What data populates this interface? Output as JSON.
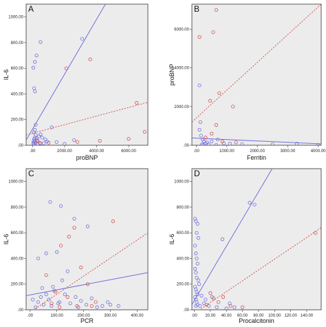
{
  "chart_data": [
    {
      "panel_label": "A",
      "type": "scatter",
      "xlabel": "proBNP",
      "ylabel": "IL-6",
      "xlim": [
        -400,
        7200
      ],
      "ylim": [
        0,
        1100
      ],
      "xticks": [
        0,
        2000,
        4000,
        6000
      ],
      "xtick_labels": [
        ".00",
        "2000.00",
        "4000.00",
        "6000.00"
      ],
      "yticks": [
        0,
        200,
        400,
        600,
        800,
        1000
      ],
      "ytick_labels": [
        ".00",
        "200.00",
        "400.00",
        "600.00",
        "800.00",
        "1000.00"
      ],
      "series": [
        {
          "marker": "circle-open",
          "color": "#6f6fdc",
          "points": [
            [
              50,
              20
            ],
            [
              80,
              35
            ],
            [
              100,
              50
            ],
            [
              150,
              60
            ],
            [
              200,
              80
            ],
            [
              260,
              55
            ],
            [
              300,
              40
            ],
            [
              400,
              70
            ],
            [
              500,
              85
            ],
            [
              600,
              60
            ],
            [
              800,
              45
            ],
            [
              1200,
              140
            ],
            [
              150,
              120
            ],
            [
              100,
              100
            ],
            [
              200,
              160
            ],
            [
              150,
              420
            ],
            [
              100,
              445
            ],
            [
              50,
              605
            ],
            [
              150,
              650
            ],
            [
              250,
              700
            ],
            [
              500,
              805
            ],
            [
              3100,
              830
            ],
            [
              60,
              10
            ],
            [
              120,
              25
            ],
            [
              180,
              15
            ],
            [
              300,
              10
            ],
            [
              450,
              20
            ],
            [
              700,
              15
            ],
            [
              900,
              30
            ],
            [
              1500,
              25
            ],
            [
              2000,
              10
            ],
            [
              2600,
              40
            ]
          ],
          "fit_line": [
            [
              -400,
              40
            ],
            [
              4550,
              1100
            ]
          ]
        },
        {
          "marker": "circle-open",
          "color": "#d45050",
          "points": [
            [
              2100,
              600
            ],
            [
              3600,
              670
            ],
            [
              6500,
              330
            ],
            [
              7000,
              105
            ],
            [
              6000,
              50
            ],
            [
              2800,
              25
            ],
            [
              4200,
              35
            ],
            [
              1000,
              20
            ],
            [
              500,
              15
            ],
            [
              300,
              30
            ]
          ],
          "fit_line": [
            [
              -400,
              80
            ],
            [
              7200,
              335
            ]
          ]
        }
      ]
    },
    {
      "panel_label": "B",
      "type": "scatter",
      "xlabel": "Ferritin",
      "ylabel": "proBNP",
      "xlim": [
        -150,
        4100
      ],
      "ylim": [
        0,
        7300
      ],
      "xticks": [
        0,
        1000,
        2000,
        3000,
        4000
      ],
      "xtick_labels": [
        ".00",
        "1000.00",
        "2000.00",
        "3000.00",
        "4000.00"
      ],
      "yticks": [
        0,
        2000,
        4000,
        6000
      ],
      "ytick_labels": [
        ".00",
        "2000.00",
        "4000.00",
        "6000.00"
      ],
      "series": [
        {
          "marker": "circle-open",
          "color": "#6f6fdc",
          "points": [
            [
              100,
              3100
            ],
            [
              130,
              1200
            ],
            [
              100,
              800
            ],
            [
              150,
              500
            ],
            [
              200,
              300
            ],
            [
              250,
              200
            ],
            [
              300,
              100
            ],
            [
              350,
              150
            ],
            [
              500,
              200
            ],
            [
              700,
              300
            ],
            [
              900,
              100
            ],
            [
              1100,
              80
            ],
            [
              1500,
              60
            ],
            [
              2500,
              50
            ],
            [
              3300,
              80
            ],
            [
              4000,
              20
            ],
            [
              180,
              50
            ],
            [
              220,
              30
            ],
            [
              400,
              40
            ],
            [
              650,
              20
            ]
          ],
          "fit_line": [
            [
              -150,
              380
            ],
            [
              4100,
              70
            ]
          ]
        },
        {
          "marker": "circle-open",
          "color": "#d45050",
          "points": [
            [
              100,
              5600
            ],
            [
              650,
              7000
            ],
            [
              550,
              5850
            ],
            [
              750,
              2700
            ],
            [
              1200,
              2000
            ],
            [
              450,
              2300
            ],
            [
              650,
              1050
            ],
            [
              500,
              600
            ],
            [
              850,
              200
            ],
            [
              1300,
              150
            ],
            [
              300,
              400
            ]
          ],
          "fit_line": [
            [
              -150,
              1200
            ],
            [
              4100,
              7300
            ]
          ]
        }
      ]
    },
    {
      "panel_label": "C",
      "type": "scatter",
      "xlabel": "PCR",
      "ylabel": "IL-6",
      "xlim": [
        -15,
        440
      ],
      "ylim": [
        0,
        1100
      ],
      "xticks": [
        0,
        100,
        200,
        300,
        400
      ],
      "xtick_labels": [
        ".00",
        "100.00",
        "200.00",
        "300.00",
        "400.00"
      ],
      "yticks": [
        0,
        200,
        400,
        600,
        800,
        1000
      ],
      "ytick_labels": [
        ".00",
        "200.00",
        "400.00",
        "600.00",
        "800.00",
        "1000.00"
      ],
      "series": [
        {
          "marker": "circle-open",
          "color": "#6f6fdc",
          "points": [
            [
              75,
              840
            ],
            [
              115,
              810
            ],
            [
              165,
              710
            ],
            [
              215,
              650
            ],
            [
              30,
              400
            ],
            [
              60,
              440
            ],
            [
              100,
              450
            ],
            [
              140,
              300
            ],
            [
              120,
              230
            ],
            [
              90,
              150
            ],
            [
              60,
              120
            ],
            [
              40,
              100
            ],
            [
              30,
              60
            ],
            [
              50,
              40
            ],
            [
              70,
              80
            ],
            [
              80,
              30
            ],
            [
              110,
              60
            ],
            [
              130,
              120
            ],
            [
              150,
              50
            ],
            [
              170,
              100
            ],
            [
              190,
              70
            ],
            [
              210,
              40
            ],
            [
              230,
              90
            ],
            [
              250,
              20
            ],
            [
              270,
              30
            ],
            [
              290,
              60
            ],
            [
              300,
              40
            ],
            [
              330,
              30
            ],
            [
              20,
              20
            ],
            [
              45,
              170
            ],
            [
              85,
              180
            ],
            [
              10,
              80
            ],
            [
              105,
              50
            ],
            [
              180,
              20
            ]
          ],
          "fit_line": [
            [
              -15,
              110
            ],
            [
              440,
              290
            ]
          ]
        },
        {
          "marker": "circle-open",
          "color": "#d45050",
          "points": [
            [
              310,
              690
            ],
            [
              165,
              640
            ],
            [
              145,
              570
            ],
            [
              115,
              500
            ],
            [
              190,
              330
            ],
            [
              60,
              270
            ],
            [
              215,
              200
            ],
            [
              95,
              140
            ],
            [
              140,
              100
            ],
            [
              245,
              60
            ],
            [
              80,
              50
            ],
            [
              110,
              20
            ],
            [
              175,
              30
            ],
            [
              230,
              30
            ]
          ],
          "fit_line": [
            [
              -15,
              -40
            ],
            [
              440,
              600
            ]
          ]
        }
      ]
    },
    {
      "panel_label": "D",
      "type": "scatter",
      "xlabel": "Procalcitonin",
      "ylabel": "IL-6",
      "xlim": [
        -3,
        158
      ],
      "ylim": [
        0,
        1100
      ],
      "xticks": [
        0,
        20,
        40,
        60,
        80,
        100,
        120,
        140
      ],
      "xtick_labels": [
        ".00",
        "20.00",
        "40.00",
        "60.00",
        "80.00",
        "100.00",
        "120.00",
        "140.00"
      ],
      "yticks": [
        0,
        200,
        400,
        600,
        800,
        1000
      ],
      "ytick_labels": [
        ".00",
        "200.00",
        "400.00",
        "600.00",
        "800.00",
        "1000.00"
      ],
      "series": [
        {
          "marker": "circle-open",
          "color": "#6f6fdc",
          "points": [
            [
              69,
              835
            ],
            [
              75,
              820
            ],
            [
              1,
              710
            ],
            [
              2,
              690
            ],
            [
              4,
              670
            ],
            [
              3,
              600
            ],
            [
              5,
              560
            ],
            [
              1,
              500
            ],
            [
              2,
              440
            ],
            [
              3,
              400
            ],
            [
              4,
              360
            ],
            [
              1,
              320
            ],
            [
              2,
              290
            ],
            [
              3,
              250
            ],
            [
              5,
              230
            ],
            [
              6,
              200
            ],
            [
              1,
              180
            ],
            [
              2,
              160
            ],
            [
              3,
              140
            ],
            [
              4,
              120
            ],
            [
              1,
              100
            ],
            [
              2,
              80
            ],
            [
              3,
              60
            ],
            [
              4,
              40
            ],
            [
              7,
              30
            ],
            [
              12,
              50
            ],
            [
              18,
              30
            ],
            [
              28,
              20
            ],
            [
              40,
              10
            ],
            [
              50,
              20
            ],
            [
              9,
              110
            ],
            [
              14,
              80
            ],
            [
              22,
              100
            ],
            [
              35,
              550
            ],
            [
              44,
              50
            ],
            [
              2,
              30
            ]
          ],
          "fit_line": [
            [
              -3,
              40
            ],
            [
              97,
              1100
            ]
          ]
        },
        {
          "marker": "circle-open",
          "color": "#d45050",
          "points": [
            [
              151,
              600
            ],
            [
              20,
              130
            ],
            [
              24,
              90
            ],
            [
              30,
              60
            ],
            [
              36,
              100
            ],
            [
              15,
              40
            ],
            [
              45,
              30
            ],
            [
              60,
              20
            ]
          ],
          "fit_line": [
            [
              -3,
              -40
            ],
            [
              158,
              640
            ]
          ]
        }
      ]
    }
  ]
}
